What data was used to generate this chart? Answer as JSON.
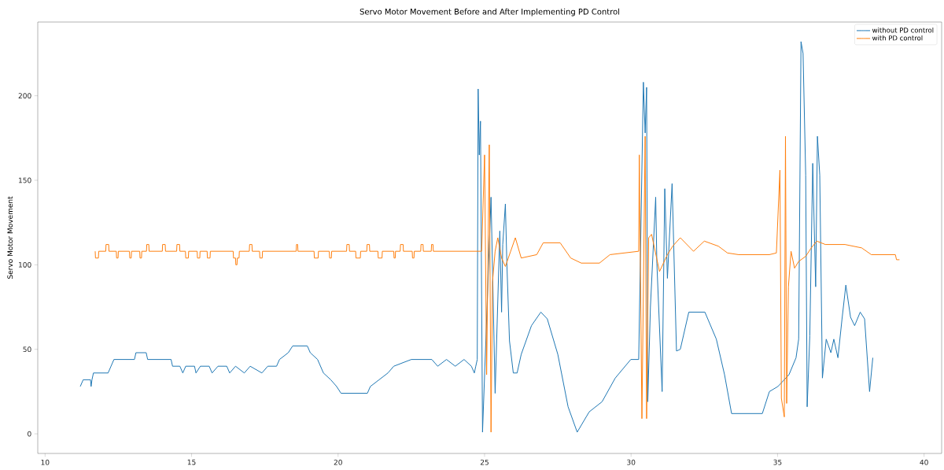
{
  "chart_data": {
    "type": "line",
    "title": "Servo Motor Movement Before and After Implementing PD Control",
    "ylabel": "Servo Motor Movement",
    "xlim": [
      9.75,
      40.6
    ],
    "ylim": [
      -11.6,
      243.6
    ],
    "xticks": [
      10,
      15,
      20,
      25,
      30,
      35,
      40
    ],
    "yticks": [
      0,
      50,
      100,
      150,
      200
    ],
    "legend": "top right",
    "grid": false,
    "marker": "none",
    "line_style": "solid",
    "series": [
      {
        "name": "without PD control",
        "color": "#1f77b4",
        "x": [
          11.2,
          11.3,
          11.55,
          11.57,
          11.6,
          11.65,
          12.15,
          12.25,
          12.35,
          13.05,
          13.1,
          13.45,
          13.5,
          14.3,
          14.35,
          14.6,
          14.7,
          14.8,
          15.1,
          15.15,
          15.3,
          15.6,
          15.7,
          15.9,
          16.2,
          16.3,
          16.5,
          16.8,
          17.0,
          17.4,
          17.6,
          17.9,
          18.0,
          18.3,
          18.45,
          18.95,
          19.05,
          19.3,
          19.5,
          19.75,
          19.95,
          20.1,
          21.0,
          21.1,
          21.4,
          21.7,
          21.9,
          22.5,
          23.2,
          23.4,
          23.7,
          24.0,
          24.3,
          24.55,
          24.65,
          24.7,
          24.75,
          24.78,
          24.82,
          24.86,
          24.93,
          25.04,
          25.22,
          25.36,
          25.52,
          25.58,
          25.62,
          25.71,
          25.76,
          25.85,
          25.98,
          26.11,
          26.25,
          26.6,
          26.92,
          27.14,
          27.5,
          27.85,
          28.16,
          28.57,
          29.01,
          29.46,
          29.99,
          30.26,
          30.42,
          30.48,
          30.53,
          30.57,
          30.66,
          30.84,
          30.88,
          31.06,
          31.15,
          31.24,
          31.4,
          31.55,
          31.68,
          31.97,
          32.52,
          32.91,
          33.19,
          33.43,
          34.48,
          34.72,
          35.01,
          35.39,
          35.63,
          35.72,
          35.8,
          35.87,
          35.96,
          36.01,
          36.1,
          36.2,
          36.3,
          36.36,
          36.44,
          36.53,
          36.66,
          36.82,
          36.92,
          37.06,
          37.2,
          37.33,
          37.49,
          37.63,
          37.82,
          37.97,
          38.14,
          38.25
        ],
        "values": [
          28,
          32,
          32,
          28,
          32,
          36,
          36,
          40,
          44,
          44,
          48,
          48,
          44,
          44,
          40,
          40,
          36,
          40,
          40,
          36,
          40,
          40,
          36,
          40,
          40,
          36,
          40,
          36,
          40,
          36,
          40,
          40,
          44,
          48,
          52,
          52,
          48,
          44,
          36,
          32,
          28,
          24,
          24,
          28,
          32,
          36,
          40,
          44,
          44,
          40,
          44,
          40,
          44,
          40,
          36,
          40,
          44,
          204,
          165,
          185,
          1,
          null,
          140,
          24,
          120,
          72,
          112,
          136,
          101,
          55,
          36,
          36,
          47,
          64,
          72,
          68,
          47,
          16,
          1,
          13,
          19,
          33,
          44,
          44,
          208,
          178,
          205,
          19,
          75,
          140,
          101,
          25,
          145,
          92,
          148,
          49,
          50,
          72,
          72,
          56,
          35,
          12,
          12,
          25,
          28,
          35,
          45,
          56,
          232,
          225,
          153,
          16,
          58,
          160,
          87,
          176,
          153,
          33,
          56,
          48,
          56,
          45,
          68,
          88,
          69,
          64,
          72,
          68,
          25,
          45
        ]
      },
      {
        "name": "with PD control",
        "color": "#ff7f0e",
        "x": [
          11.71,
          11.72,
          11.82,
          11.83,
          12.07,
          12.08,
          12.17,
          12.18,
          12.43,
          12.44,
          12.49,
          12.5,
          12.88,
          12.89,
          12.94,
          12.95,
          13.23,
          13.24,
          13.29,
          13.3,
          13.46,
          13.47,
          13.54,
          13.55,
          14.0,
          14.01,
          14.1,
          14.11,
          14.49,
          14.5,
          14.59,
          14.6,
          14.79,
          14.8,
          14.89,
          14.9,
          15.19,
          15.2,
          15.28,
          15.29,
          15.53,
          15.54,
          15.63,
          15.64,
          16.42,
          16.43,
          16.5,
          16.51,
          16.55,
          16.56,
          16.62,
          16.63,
          16.97,
          16.98,
          17.06,
          17.07,
          17.32,
          17.33,
          17.41,
          17.42,
          18.57,
          18.58,
          18.62,
          18.63,
          19.18,
          19.19,
          19.32,
          19.33,
          19.7,
          19.71,
          19.77,
          19.78,
          20.29,
          20.3,
          20.38,
          20.39,
          20.6,
          20.61,
          20.76,
          20.77,
          20.98,
          20.99,
          21.07,
          21.08,
          21.36,
          21.37,
          21.5,
          21.51,
          21.9,
          21.91,
          21.95,
          21.96,
          22.12,
          22.13,
          22.22,
          22.23,
          22.53,
          22.54,
          22.59,
          22.6,
          22.82,
          22.83,
          22.9,
          22.91,
          23.18,
          23.19,
          23.24,
          23.25,
          24.9,
          25.0,
          25.07,
          25.16,
          25.22,
          25.27,
          25.36,
          25.45,
          25.58,
          25.71,
          25.89,
          26.05,
          26.25,
          26.78,
          27.0,
          27.58,
          27.94,
          28.3,
          28.92,
          29.28,
          30.26,
          30.28,
          30.37,
          30.48,
          30.53,
          30.6,
          30.7,
          30.97,
          31.24,
          31.42,
          31.68,
          32.13,
          32.5,
          32.98,
          33.29,
          33.67,
          34.72,
          34.96,
          35.08,
          35.13,
          35.23,
          35.27,
          35.31,
          35.37,
          35.46,
          35.58,
          35.72,
          35.96,
          36.15,
          36.34,
          36.63,
          37.3,
          37.87,
          38.2,
          39.02,
          39.06,
          39.16
        ],
        "values": [
          108,
          104,
          104,
          108,
          108,
          112,
          112,
          108,
          108,
          104,
          104,
          108,
          108,
          104,
          104,
          108,
          108,
          104,
          104,
          108,
          108,
          112,
          112,
          108,
          108,
          112,
          112,
          108,
          108,
          112,
          112,
          108,
          108,
          104,
          104,
          108,
          108,
          104,
          104,
          108,
          108,
          104,
          104,
          108,
          108,
          104,
          104,
          100,
          100,
          104,
          104,
          108,
          108,
          112,
          112,
          108,
          108,
          104,
          104,
          108,
          108,
          112,
          112,
          108,
          108,
          104,
          104,
          108,
          108,
          104,
          104,
          108,
          108,
          112,
          112,
          108,
          108,
          104,
          104,
          108,
          108,
          112,
          112,
          108,
          108,
          104,
          104,
          108,
          108,
          104,
          104,
          108,
          108,
          112,
          112,
          108,
          108,
          104,
          104,
          108,
          108,
          112,
          112,
          108,
          108,
          112,
          112,
          108,
          108,
          165,
          35,
          171,
          1,
          90,
          108,
          116,
          104,
          99,
          108,
          116,
          104,
          106,
          113,
          113,
          104,
          101,
          101,
          106,
          108,
          165,
          9,
          176,
          9,
          116,
          118,
          96,
          106,
          111,
          116,
          108,
          114,
          111,
          107,
          106,
          106,
          107,
          156,
          21,
          10,
          176,
          18,
          87,
          108,
          98,
          102,
          105,
          110,
          114,
          112,
          112,
          110,
          106,
          106,
          103,
          103
        ]
      }
    ]
  }
}
